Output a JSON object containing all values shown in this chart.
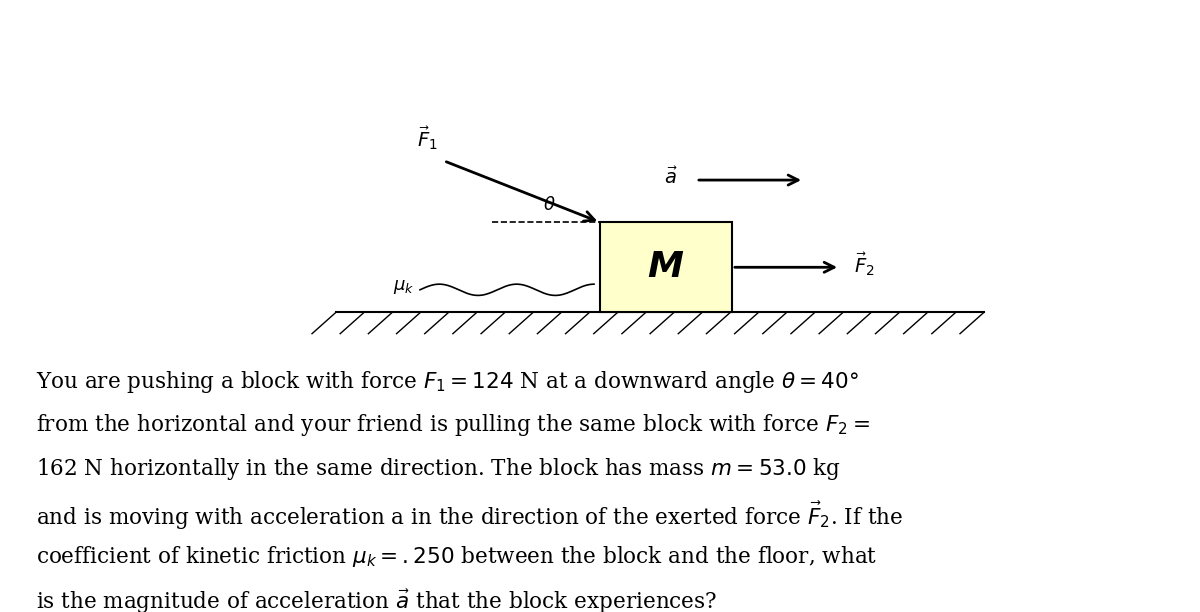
{
  "bg_color": "#ffffff",
  "box_color": "#ffffcc",
  "box_edge_color": "#000000",
  "font_size_text": 15.5,
  "font_size_M": 26,
  "font_size_labels": 13
}
